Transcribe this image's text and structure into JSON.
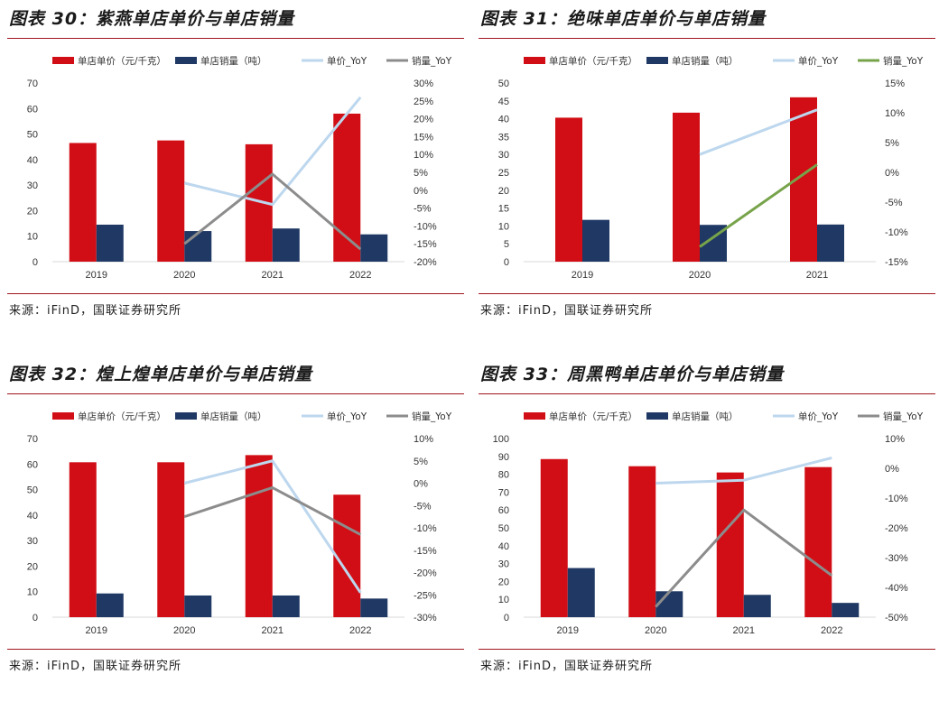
{
  "colors": {
    "bar1": "#d10e15",
    "bar2": "#1f3864",
    "line1": "#bdd7ee",
    "line2_gray": "#8c8c8c",
    "line2_green": "#77a34a"
  },
  "panels": [
    {
      "title": "图表 30：紫燕单店单价与单店销量",
      "source": "来源：iFinD，国联证券研究所",
      "chart_data": {
        "type": "bar",
        "categories": [
          "2019",
          "2020",
          "2021",
          "2022"
        ],
        "series": [
          {
            "name": "单店单价（元/千克）",
            "kind": "bar",
            "values": [
              46.5,
              47.5,
              46,
              58
            ]
          },
          {
            "name": "单店销量（吨）",
            "kind": "bar",
            "values": [
              14.5,
              12,
              13,
              10.7
            ]
          },
          {
            "name": "单价_YoY",
            "kind": "line",
            "axis": "right",
            "values": [
              null,
              2,
              -4,
              26
            ]
          },
          {
            "name": "销量_YoY",
            "kind": "line",
            "axis": "right",
            "values": [
              null,
              -15,
              4.5,
              -16.5
            ]
          }
        ],
        "ylim_left": [
          0,
          70
        ],
        "yticks_left": [
          "0",
          "10",
          "20",
          "30",
          "40",
          "50",
          "60",
          "70"
        ],
        "ylim_right": [
          -20,
          30
        ],
        "yticks_right": [
          "-20%",
          "-15%",
          "-10%",
          "-5%",
          "0%",
          "5%",
          "10%",
          "15%",
          "20%",
          "25%",
          "30%"
        ],
        "line2_color": "gray"
      }
    },
    {
      "title": "图表 31：绝味单店单价与单店销量",
      "source": "来源：iFinD，国联证券研究所",
      "chart_data": {
        "type": "bar",
        "categories": [
          "2019",
          "2020",
          "2021"
        ],
        "series": [
          {
            "name": "单店单价（元/千克）",
            "kind": "bar",
            "values": [
              40.3,
              41.7,
              46
            ]
          },
          {
            "name": "单店销量（吨）",
            "kind": "bar",
            "values": [
              11.7,
              10.3,
              10.4
            ]
          },
          {
            "name": "单价_YoY",
            "kind": "line",
            "axis": "right",
            "values": [
              null,
              3,
              10.5
            ]
          },
          {
            "name": "销量_YoY",
            "kind": "line",
            "axis": "right",
            "values": [
              null,
              -12.5,
              1.3
            ]
          }
        ],
        "ylim_left": [
          0,
          50
        ],
        "yticks_left": [
          "0",
          "5",
          "10",
          "15",
          "20",
          "25",
          "30",
          "35",
          "40",
          "45",
          "50"
        ],
        "ylim_right": [
          -15,
          15
        ],
        "yticks_right": [
          "-15%",
          "-10%",
          "-5%",
          "0%",
          "5%",
          "10%",
          "15%"
        ],
        "line2_color": "green"
      }
    },
    {
      "title": "图表 32：煌上煌单店单价与单店销量",
      "source": "来源：iFinD，国联证券研究所",
      "chart_data": {
        "type": "bar",
        "categories": [
          "2019",
          "2020",
          "2021",
          "2022"
        ],
        "series": [
          {
            "name": "单店单价（元/千克）",
            "kind": "bar",
            "values": [
              60.7,
              60.7,
              63.5,
              48
            ]
          },
          {
            "name": "单店销量（吨）",
            "kind": "bar",
            "values": [
              9.3,
              8.5,
              8.5,
              7.3
            ]
          },
          {
            "name": "单价_YoY",
            "kind": "line",
            "axis": "right",
            "values": [
              null,
              0,
              5,
              -24.5
            ]
          },
          {
            "name": "销量_YoY",
            "kind": "line",
            "axis": "right",
            "values": [
              null,
              -7.5,
              -1,
              -11.5
            ]
          }
        ],
        "ylim_left": [
          0,
          70
        ],
        "yticks_left": [
          "0",
          "10",
          "20",
          "30",
          "40",
          "50",
          "60",
          "70"
        ],
        "ylim_right": [
          -30,
          10
        ],
        "yticks_right": [
          "-30%",
          "-25%",
          "-20%",
          "-15%",
          "-10%",
          "-5%",
          "0%",
          "5%",
          "10%"
        ],
        "line2_color": "gray"
      }
    },
    {
      "title": "图表 33：周黑鸭单店单价与单店销量",
      "source": "来源：iFinD，国联证券研究所",
      "chart_data": {
        "type": "bar",
        "categories": [
          "2019",
          "2020",
          "2021",
          "2022"
        ],
        "series": [
          {
            "name": "单店单价（元/千克）",
            "kind": "bar",
            "values": [
              88.5,
              84.5,
              81,
              84
            ]
          },
          {
            "name": "单店销量（吨）",
            "kind": "bar",
            "values": [
              27.5,
              14.5,
              12.5,
              8
            ]
          },
          {
            "name": "单价_YoY",
            "kind": "line",
            "axis": "right",
            "values": [
              null,
              -5,
              -4,
              3.5
            ]
          },
          {
            "name": "销量_YoY",
            "kind": "line",
            "axis": "right",
            "values": [
              null,
              -46.5,
              -14,
              -36
            ]
          }
        ],
        "ylim_left": [
          0,
          100
        ],
        "yticks_left": [
          "0",
          "10",
          "20",
          "30",
          "40",
          "50",
          "60",
          "70",
          "80",
          "90",
          "100"
        ],
        "ylim_right": [
          -50,
          10
        ],
        "yticks_right": [
          "-50%",
          "-40%",
          "-30%",
          "-20%",
          "-10%",
          "0%",
          "10%"
        ],
        "line2_color": "gray"
      }
    }
  ]
}
